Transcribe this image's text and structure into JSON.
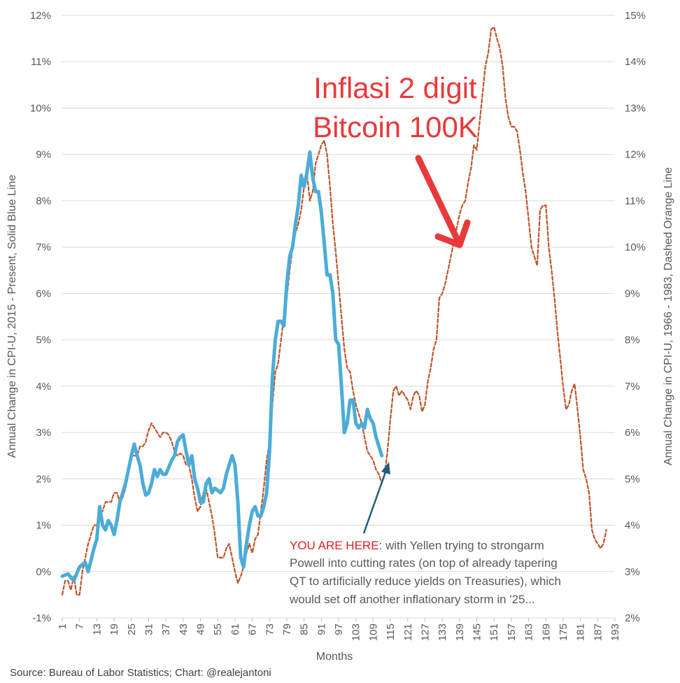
{
  "chart_data": {
    "type": "line",
    "xlabel": "Months",
    "ylabel": "Annual Change in CPI-U, 2015 - Present, Solid Blue Line",
    "y2label": "Annual Change in CPI-U, 1966 - 1983, Dashed Orange Line",
    "ylim": [
      -1,
      12
    ],
    "y2lim": [
      2,
      15
    ],
    "y_ticks": [
      "-1%",
      "0%",
      "1%",
      "2%",
      "3%",
      "4%",
      "5%",
      "6%",
      "7%",
      "8%",
      "9%",
      "10%",
      "11%",
      "12%"
    ],
    "y2_ticks": [
      "2%",
      "3%",
      "4%",
      "5%",
      "6%",
      "7%",
      "8%",
      "9%",
      "10%",
      "11%",
      "12%",
      "13%",
      "14%",
      "15%"
    ],
    "x_ticks": [
      1,
      7,
      13,
      19,
      25,
      31,
      37,
      43,
      49,
      55,
      61,
      67,
      73,
      79,
      85,
      91,
      97,
      103,
      109,
      115,
      121,
      127,
      133,
      139,
      145,
      151,
      157,
      163,
      169,
      175,
      181,
      187,
      193
    ],
    "xlim": [
      1,
      193
    ],
    "grid": "horizontal",
    "series": [
      {
        "axis": "left",
        "style": "solid",
        "color": "#4bacd8",
        "points": [
          [
            1,
            -0.1
          ],
          [
            3,
            -0.05
          ],
          [
            5,
            -0.2
          ],
          [
            7,
            0.1
          ],
          [
            9,
            0.2
          ],
          [
            10,
            0.0
          ],
          [
            12,
            0.5
          ],
          [
            13,
            0.7
          ],
          [
            14,
            1.4
          ],
          [
            15,
            1.0
          ],
          [
            16,
            0.9
          ],
          [
            17,
            1.1
          ],
          [
            18,
            1.0
          ],
          [
            19,
            0.8
          ],
          [
            20,
            1.1
          ],
          [
            21,
            1.5
          ],
          [
            22,
            1.7
          ],
          [
            23,
            1.9
          ],
          [
            24,
            2.2
          ],
          [
            25,
            2.5
          ],
          [
            26,
            2.75
          ],
          [
            27,
            2.5
          ],
          [
            28,
            2.3
          ],
          [
            29,
            1.9
          ],
          [
            30,
            1.65
          ],
          [
            31,
            1.7
          ],
          [
            32,
            1.9
          ],
          [
            33,
            2.2
          ],
          [
            34,
            2.05
          ],
          [
            35,
            2.2
          ],
          [
            36,
            2.1
          ],
          [
            37,
            2.1
          ],
          [
            38,
            2.25
          ],
          [
            39,
            2.4
          ],
          [
            40,
            2.5
          ],
          [
            41,
            2.8
          ],
          [
            42,
            2.9
          ],
          [
            43,
            2.95
          ],
          [
            44,
            2.6
          ],
          [
            45,
            2.3
          ],
          [
            46,
            2.5
          ],
          [
            47,
            2.0
          ],
          [
            48,
            1.8
          ],
          [
            49,
            1.5
          ],
          [
            50,
            1.5
          ],
          [
            51,
            1.9
          ],
          [
            52,
            2.0
          ],
          [
            53,
            1.7
          ],
          [
            54,
            1.8
          ],
          [
            55,
            1.75
          ],
          [
            56,
            1.7
          ],
          [
            57,
            1.8
          ],
          [
            58,
            2.1
          ],
          [
            59,
            2.3
          ],
          [
            60,
            2.5
          ],
          [
            61,
            2.3
          ],
          [
            62,
            1.5
          ],
          [
            63,
            0.3
          ],
          [
            64,
            0.1
          ],
          [
            65,
            0.6
          ],
          [
            66,
            1.0
          ],
          [
            67,
            1.3
          ],
          [
            68,
            1.4
          ],
          [
            69,
            1.2
          ],
          [
            70,
            1.2
          ],
          [
            71,
            1.4
          ],
          [
            72,
            1.7
          ],
          [
            73,
            2.6
          ],
          [
            74,
            4.2
          ],
          [
            75,
            5.0
          ],
          [
            76,
            5.4
          ],
          [
            77,
            5.4
          ],
          [
            78,
            5.3
          ],
          [
            79,
            6.2
          ],
          [
            80,
            6.8
          ],
          [
            81,
            7.0
          ],
          [
            82,
            7.5
          ],
          [
            83,
            7.9
          ],
          [
            84,
            8.55
          ],
          [
            85,
            8.3
          ],
          [
            86,
            8.6
          ],
          [
            87,
            9.05
          ],
          [
            88,
            8.5
          ],
          [
            89,
            8.2
          ],
          [
            90,
            8.2
          ],
          [
            91,
            7.75
          ],
          [
            92,
            7.1
          ],
          [
            93,
            6.4
          ],
          [
            94,
            6.4
          ],
          [
            95,
            6.0
          ],
          [
            96,
            5.0
          ],
          [
            97,
            4.9
          ],
          [
            98,
            4.0
          ],
          [
            99,
            3.0
          ],
          [
            100,
            3.2
          ],
          [
            101,
            3.7
          ],
          [
            102,
            3.7
          ],
          [
            103,
            3.2
          ],
          [
            104,
            3.1
          ],
          [
            105,
            3.2
          ],
          [
            106,
            3.1
          ],
          [
            107,
            3.5
          ],
          [
            108,
            3.3
          ],
          [
            109,
            3.2
          ],
          [
            110,
            2.9
          ],
          [
            111,
            2.7
          ],
          [
            112,
            2.5
          ]
        ]
      },
      {
        "axis": "right",
        "style": "dashed",
        "color": "#c0542a",
        "points": [
          [
            1,
            2.5
          ],
          [
            2,
            2.8
          ],
          [
            3,
            2.8
          ],
          [
            4,
            2.6
          ],
          [
            5,
            2.9
          ],
          [
            6,
            2.5
          ],
          [
            7,
            2.5
          ],
          [
            8,
            3.0
          ],
          [
            9,
            3.3
          ],
          [
            10,
            3.6
          ],
          [
            11,
            3.8
          ],
          [
            12,
            4.0
          ],
          [
            13,
            4.0
          ],
          [
            14,
            4.3
          ],
          [
            15,
            4.3
          ],
          [
            16,
            4.5
          ],
          [
            17,
            4.5
          ],
          [
            18,
            4.5
          ],
          [
            19,
            4.7
          ],
          [
            20,
            4.7
          ],
          [
            21,
            4.5
          ],
          [
            22,
            4.6
          ],
          [
            23,
            4.8
          ],
          [
            24,
            5.2
          ],
          [
            25,
            5.5
          ],
          [
            26,
            5.5
          ],
          [
            27,
            5.5
          ],
          [
            28,
            5.7
          ],
          [
            29,
            5.7
          ],
          [
            30,
            5.8
          ],
          [
            31,
            6.05
          ],
          [
            32,
            6.2
          ],
          [
            33,
            6.1
          ],
          [
            34,
            6.0
          ],
          [
            35,
            5.9
          ],
          [
            36,
            6.0
          ],
          [
            37,
            6.0
          ],
          [
            38,
            5.95
          ],
          [
            39,
            5.8
          ],
          [
            40,
            5.6
          ],
          [
            41,
            5.5
          ],
          [
            42,
            5.55
          ],
          [
            43,
            5.5
          ],
          [
            44,
            5.3
          ],
          [
            45,
            5.3
          ],
          [
            46,
            5.0
          ],
          [
            47,
            4.6
          ],
          [
            48,
            4.3
          ],
          [
            49,
            4.4
          ],
          [
            50,
            4.7
          ],
          [
            51,
            4.8
          ],
          [
            52,
            4.5
          ],
          [
            53,
            4.2
          ],
          [
            54,
            3.8
          ],
          [
            55,
            3.3
          ],
          [
            56,
            3.3
          ],
          [
            57,
            3.3
          ],
          [
            58,
            3.5
          ],
          [
            59,
            3.6
          ],
          [
            60,
            3.3
          ],
          [
            61,
            3.0
          ],
          [
            62,
            2.75
          ],
          [
            63,
            2.9
          ],
          [
            64,
            3.1
          ],
          [
            65,
            3.4
          ],
          [
            66,
            3.6
          ],
          [
            67,
            3.4
          ],
          [
            68,
            3.7
          ],
          [
            69,
            3.8
          ],
          [
            70,
            4.3
          ],
          [
            71,
            4.8
          ],
          [
            72,
            5.4
          ],
          [
            73,
            5.8
          ],
          [
            74,
            6.6
          ],
          [
            75,
            7.3
          ],
          [
            76,
            7.5
          ],
          [
            77,
            8.0
          ],
          [
            78,
            8.5
          ],
          [
            79,
            8.9
          ],
          [
            80,
            9.5
          ],
          [
            81,
            10.0
          ],
          [
            82,
            10.3
          ],
          [
            83,
            10.5
          ],
          [
            84,
            10.8
          ],
          [
            85,
            11.3
          ],
          [
            86,
            11.6
          ],
          [
            87,
            11.0
          ],
          [
            88,
            11.2
          ],
          [
            89,
            11.8
          ],
          [
            90,
            12.0
          ],
          [
            91,
            12.2
          ],
          [
            92,
            12.3
          ],
          [
            93,
            12.0
          ],
          [
            94,
            11.3
          ],
          [
            95,
            10.5
          ],
          [
            96,
            9.9
          ],
          [
            97,
            9.2
          ],
          [
            98,
            8.5
          ],
          [
            99,
            7.8
          ],
          [
            100,
            7.4
          ],
          [
            101,
            7.3
          ],
          [
            102,
            6.9
          ],
          [
            103,
            6.6
          ],
          [
            104,
            6.4
          ],
          [
            105,
            6.2
          ],
          [
            106,
            5.9
          ],
          [
            107,
            5.6
          ],
          [
            108,
            5.5
          ],
          [
            109,
            5.4
          ],
          [
            110,
            5.2
          ],
          [
            111,
            5.1
          ],
          [
            112,
            4.9
          ],
          [
            113,
            5.1
          ],
          [
            114,
            5.6
          ],
          [
            115,
            6.3
          ],
          [
            116,
            6.9
          ],
          [
            117,
            7.0
          ],
          [
            118,
            6.8
          ],
          [
            119,
            6.9
          ],
          [
            120,
            6.8
          ],
          [
            121,
            6.7
          ],
          [
            122,
            6.5
          ],
          [
            123,
            6.8
          ],
          [
            124,
            6.9
          ],
          [
            125,
            6.8
          ],
          [
            126,
            6.45
          ],
          [
            127,
            6.6
          ],
          [
            128,
            7.1
          ],
          [
            129,
            7.4
          ],
          [
            130,
            7.8
          ],
          [
            131,
            8.0
          ],
          [
            132,
            8.9
          ],
          [
            133,
            9.0
          ],
          [
            134,
            9.2
          ],
          [
            135,
            9.5
          ],
          [
            136,
            9.8
          ],
          [
            137,
            10.1
          ],
          [
            138,
            10.4
          ],
          [
            139,
            10.7
          ],
          [
            140,
            10.9
          ],
          [
            141,
            11.0
          ],
          [
            142,
            11.4
          ],
          [
            143,
            11.7
          ],
          [
            144,
            12.2
          ],
          [
            145,
            12.1
          ],
          [
            146,
            12.7
          ],
          [
            147,
            13.3
          ],
          [
            148,
            13.9
          ],
          [
            149,
            14.2
          ],
          [
            150,
            14.7
          ],
          [
            151,
            14.75
          ],
          [
            152,
            14.5
          ],
          [
            153,
            14.3
          ],
          [
            154,
            13.9
          ],
          [
            155,
            13.2
          ],
          [
            156,
            12.8
          ],
          [
            157,
            12.6
          ],
          [
            158,
            12.6
          ],
          [
            159,
            12.5
          ],
          [
            160,
            12.1
          ],
          [
            161,
            11.6
          ],
          [
            162,
            11.2
          ],
          [
            163,
            10.6
          ],
          [
            164,
            10.0
          ],
          [
            165,
            9.8
          ],
          [
            166,
            9.6
          ],
          [
            167,
            10.8
          ],
          [
            168,
            10.9
          ],
          [
            169,
            10.9
          ],
          [
            170,
            10.0
          ],
          [
            171,
            9.5
          ],
          [
            172,
            8.9
          ],
          [
            173,
            8.2
          ],
          [
            174,
            7.6
          ],
          [
            175,
            7.0
          ],
          [
            176,
            6.5
          ],
          [
            177,
            6.6
          ],
          [
            178,
            6.9
          ],
          [
            179,
            7.05
          ],
          [
            180,
            6.5
          ],
          [
            181,
            5.9
          ],
          [
            182,
            5.2
          ],
          [
            183,
            5.0
          ],
          [
            184,
            4.7
          ],
          [
            185,
            3.9
          ],
          [
            186,
            3.7
          ],
          [
            187,
            3.6
          ],
          [
            188,
            3.5
          ],
          [
            189,
            3.6
          ],
          [
            190,
            3.9
          ]
        ]
      }
    ],
    "annotations": {
      "headline_line1": "Inflasi 2 digit",
      "headline_line2": "Bitcoin 100K",
      "note_highlight": "YOU ARE HERE",
      "note_line1": ": with Yellen trying to strongarm",
      "note_line2": "Powell into cutting rates (on top of already tapering",
      "note_line3": "QT to artificially reduce yields on Treasuries), which",
      "note_line4": "would set off another inflationary storm in '25..."
    },
    "source": "Source: Bureau of Labor Statistics; Chart: @realejantoni"
  },
  "colors": {
    "blue_line": "#4bacd8",
    "orange_line": "#c0542a",
    "headline": "#e8393b",
    "arrow_pointer": "#1f5f7a"
  },
  "icons": [
    "red-arrow-icon",
    "pointer-arrow-icon"
  ]
}
